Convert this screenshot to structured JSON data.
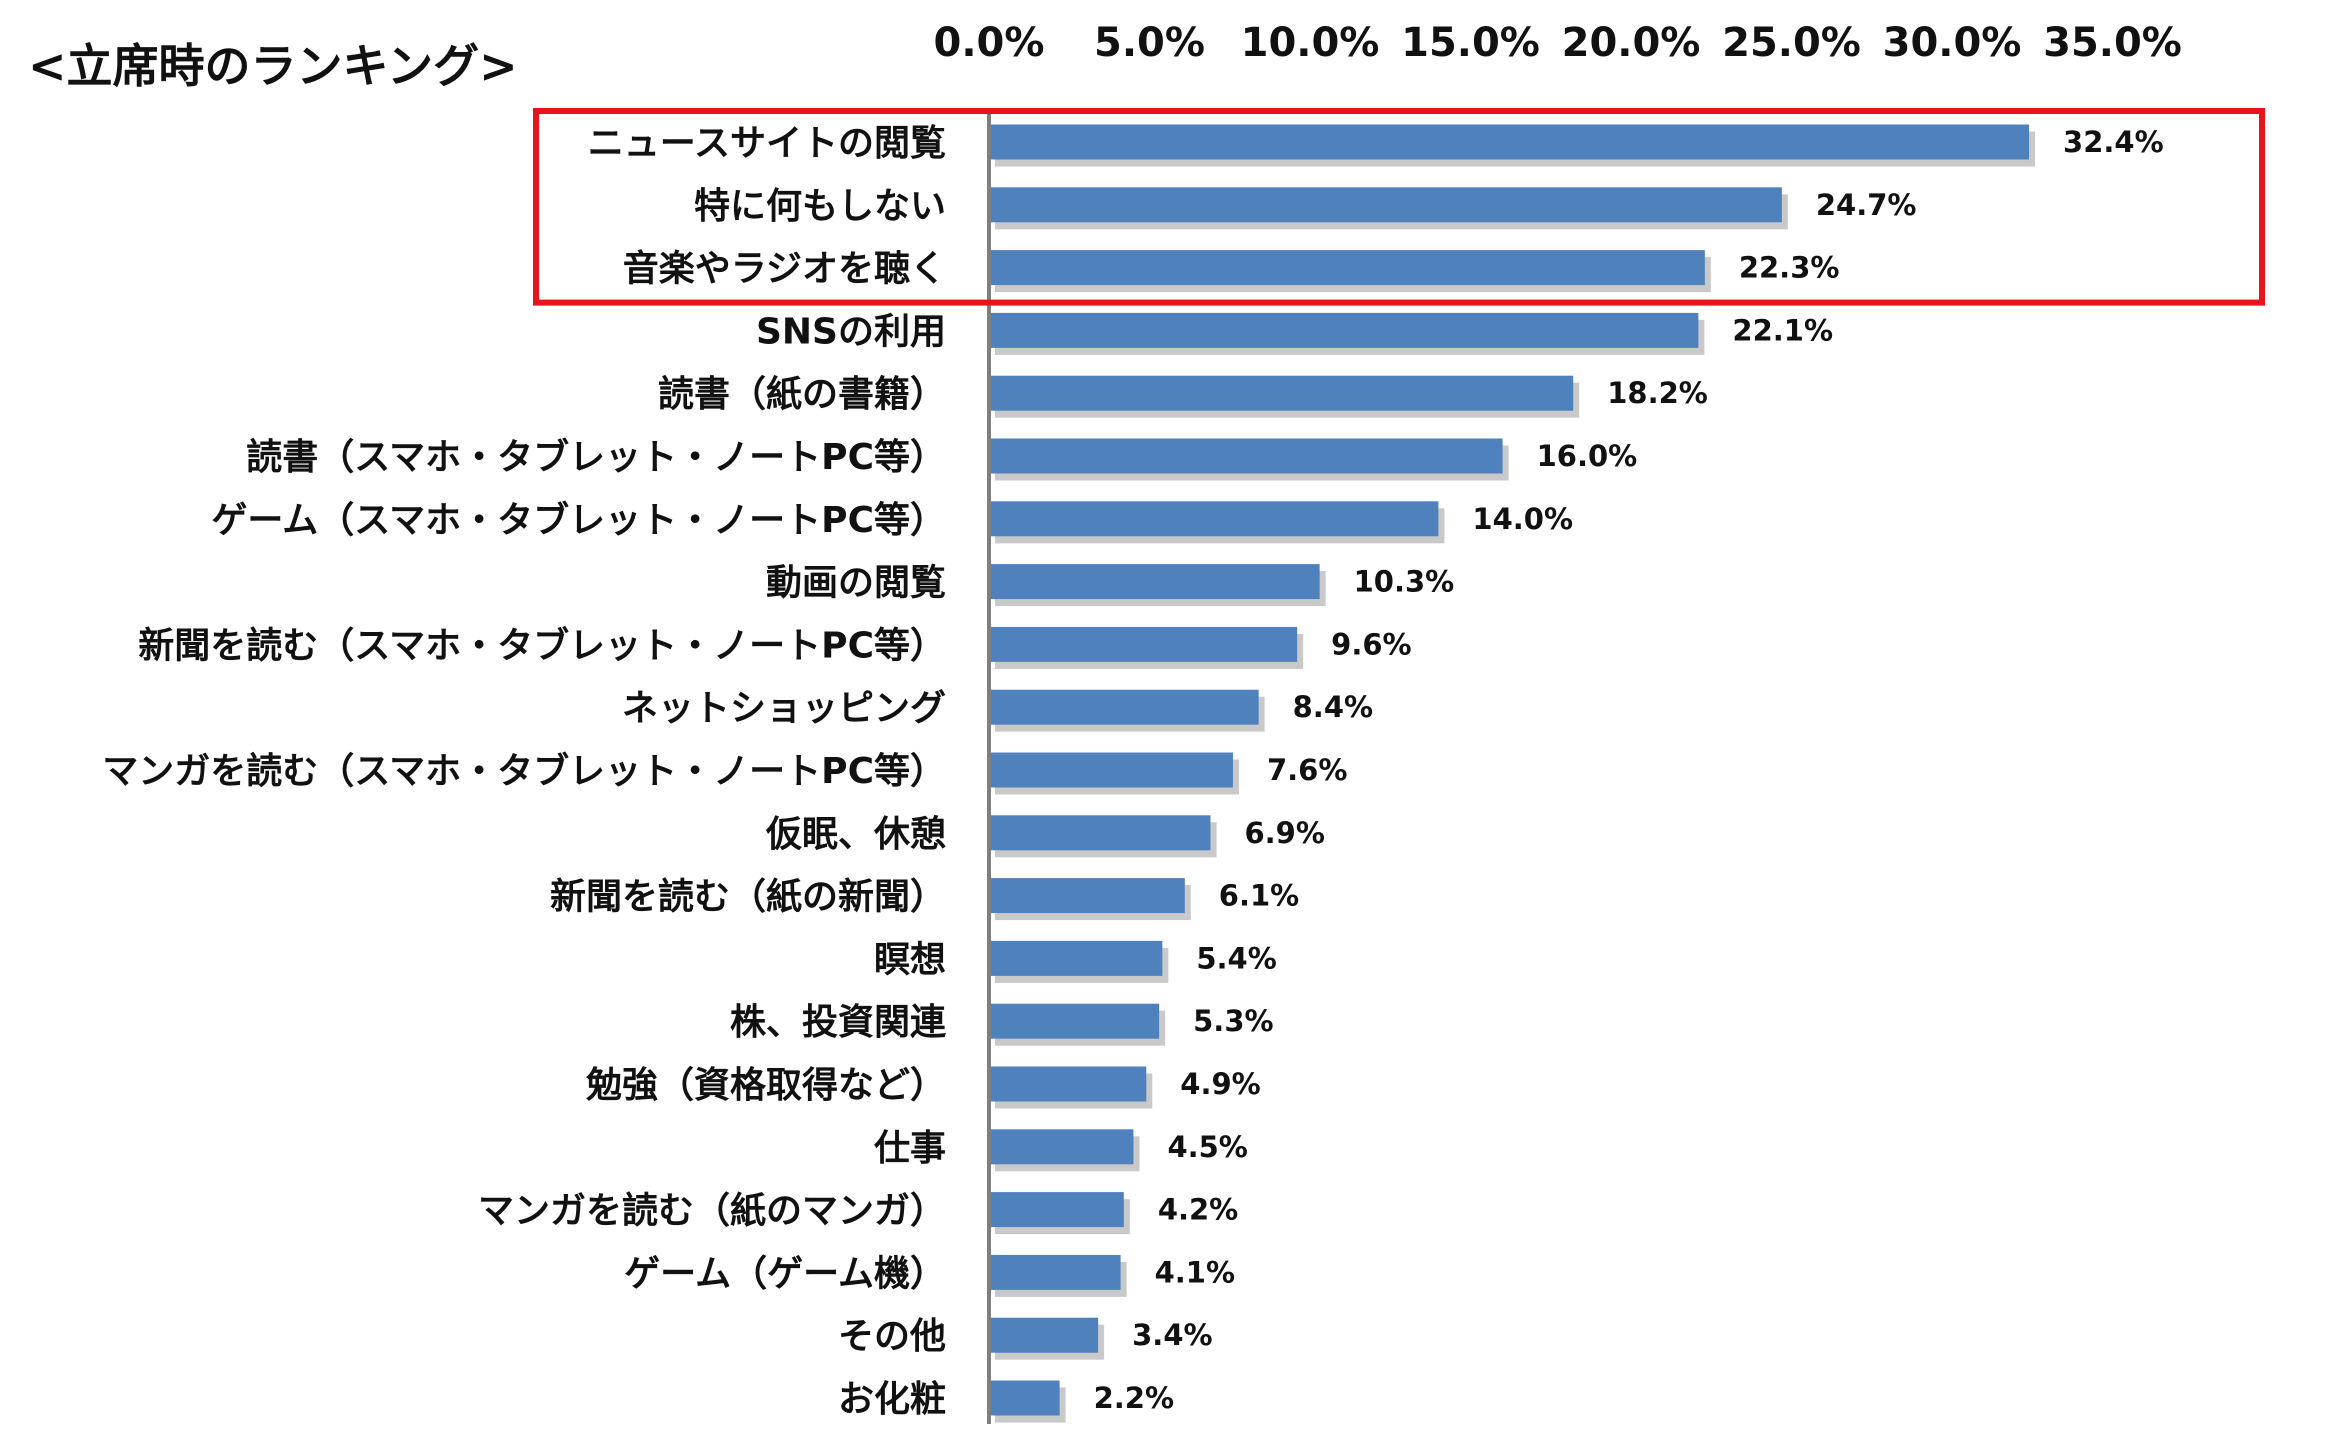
{
  "chart_data": {
    "type": "bar",
    "orientation": "horizontal",
    "title": "<立席時のランキング>",
    "categories": [
      "ニュースサイトの閲覧",
      "特に何もしない",
      "音楽やラジオを聴く",
      "SNSの利用",
      "読書（紙の書籍）",
      "読書（スマホ・タブレット・ノートPC等）",
      "ゲーム（スマホ・タブレット・ノートPC等）",
      "動画の閲覧",
      "新聞を読む（スマホ・タブレット・ノートPC等）",
      "ネットショッピング",
      "マンガを読む（スマホ・タブレット・ノートPC等）",
      "仮眠、休憩",
      "新聞を読む（紙の新聞）",
      "瞑想",
      "株、投資関連",
      "勉強（資格取得など）",
      "仕事",
      "マンガを読む（紙のマンガ）",
      "ゲーム（ゲーム機）",
      "その他",
      "お化粧"
    ],
    "values": [
      32.4,
      24.7,
      22.3,
      22.1,
      18.2,
      16.0,
      14.0,
      10.3,
      9.6,
      8.4,
      7.6,
      6.9,
      6.1,
      5.4,
      5.3,
      4.9,
      4.5,
      4.2,
      4.1,
      3.4,
      2.2
    ],
    "value_labels": [
      "32.4%",
      "24.7%",
      "22.3%",
      "22.1%",
      "18.2%",
      "16.0%",
      "14.0%",
      "10.3%",
      "9.6%",
      "8.4%",
      "7.6%",
      "6.9%",
      "6.1%",
      "5.4%",
      "5.3%",
      "4.9%",
      "4.5%",
      "4.2%",
      "4.1%",
      "3.4%",
      "2.2%"
    ],
    "xlim": [
      0,
      35
    ],
    "x_ticks": [
      0,
      5,
      10,
      15,
      20,
      25,
      30,
      35
    ],
    "x_tick_labels": [
      "0.0%",
      "5.0%",
      "10.0%",
      "15.0%",
      "20.0%",
      "25.0%",
      "30.0%",
      "35.0%"
    ],
    "x_axis_position": "top",
    "grid": false,
    "highlight": {
      "categories_range": [
        0,
        2
      ],
      "color": "#e8141c"
    },
    "colors": {
      "bar": "#4f81bd",
      "bar_shadow": "#b7b7b7",
      "axis": "#7f7f7f",
      "text": "#111111"
    }
  }
}
